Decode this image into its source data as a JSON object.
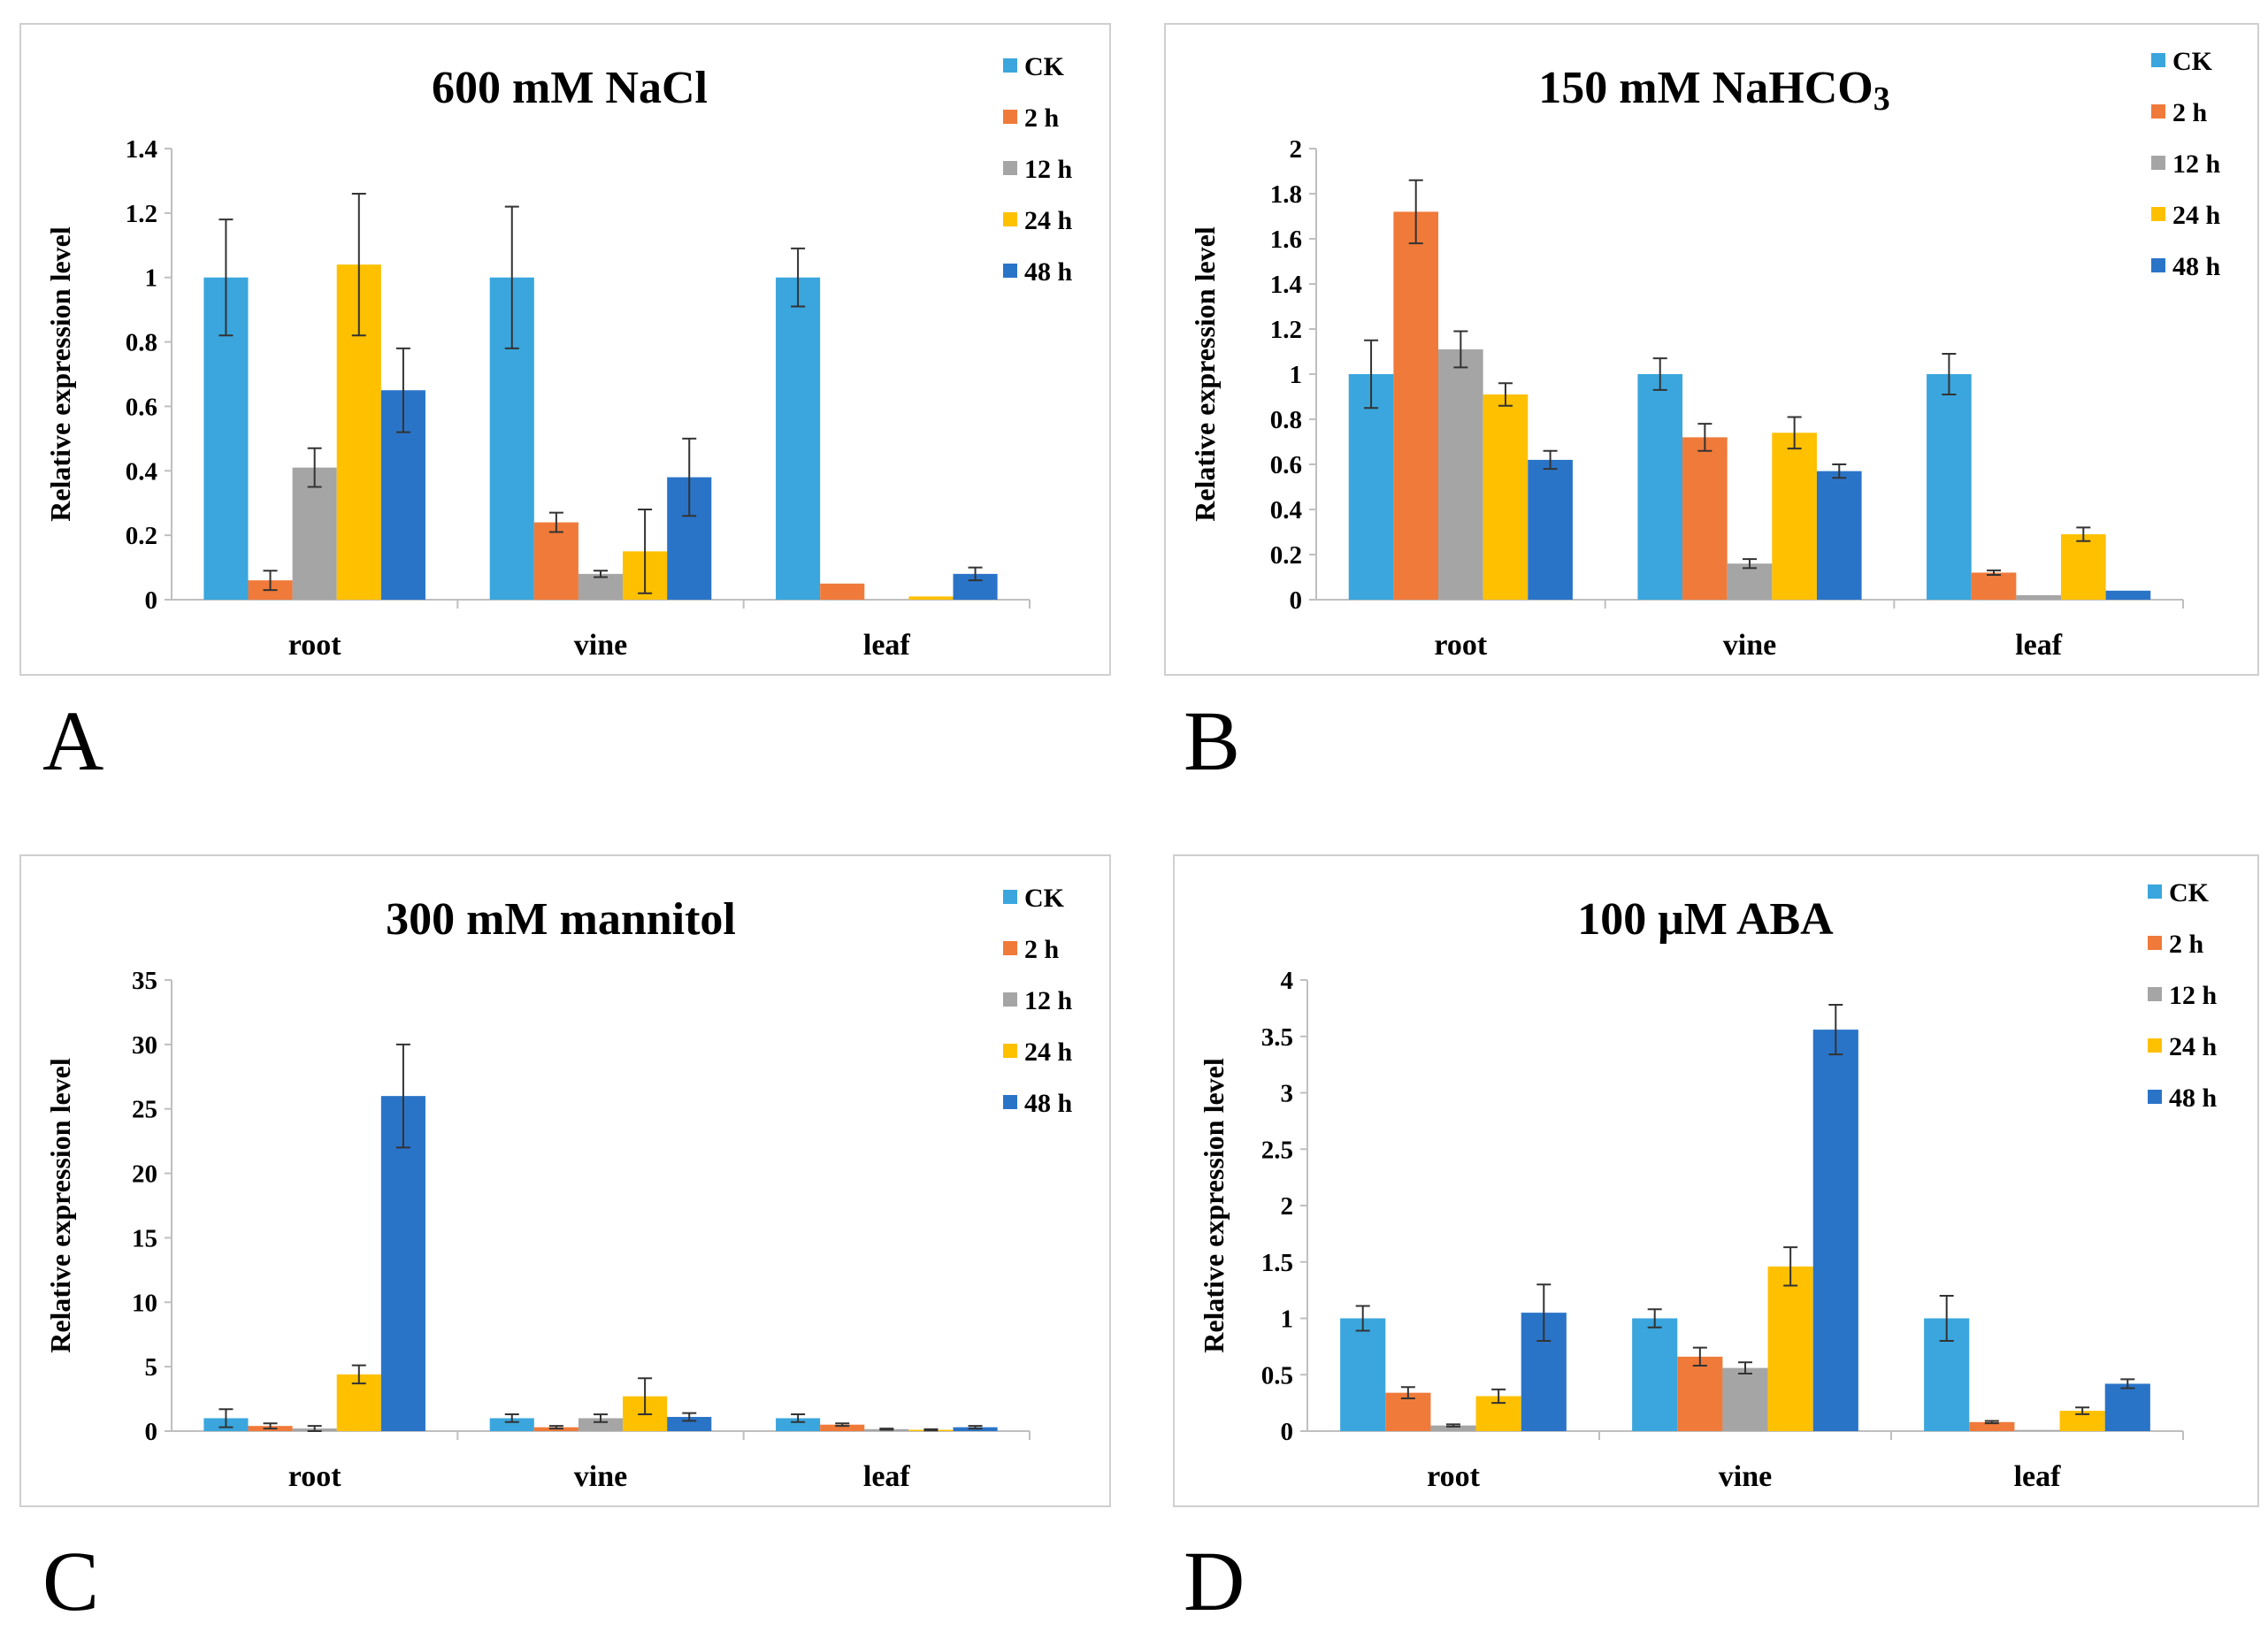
{
  "colors": {
    "CK": "#3aa6dd",
    "2 h": "#f07a3a",
    "12 h": "#a5a5a5",
    "24 h": "#ffc000",
    "48 h": "#2a74c8"
  },
  "chart_data": [
    {
      "panel": "A",
      "type": "bar",
      "title": "600 mM NaCl",
      "ylabel": "Relative expression level",
      "xlabel": "",
      "ylim": [
        0,
        1.4
      ],
      "yticks": [
        "0",
        "0.2",
        "0.4",
        "0.6",
        "0.8",
        "1",
        "1.2",
        "1.4"
      ],
      "categories": [
        "root",
        "vine",
        "leaf"
      ],
      "series": [
        {
          "name": "CK",
          "values": [
            1.0,
            1.0,
            1.0
          ],
          "errors": [
            0.18,
            0.22,
            0.09
          ]
        },
        {
          "name": "2 h",
          "values": [
            0.06,
            0.24,
            0.05
          ],
          "errors": [
            0.03,
            0.03,
            0.0
          ]
        },
        {
          "name": "12 h",
          "values": [
            0.41,
            0.08,
            0.0
          ],
          "errors": [
            0.06,
            0.01,
            0.0
          ]
        },
        {
          "name": "24 h",
          "values": [
            1.04,
            0.15,
            0.01
          ],
          "errors": [
            0.22,
            0.13,
            0.0
          ]
        },
        {
          "name": "48 h",
          "values": [
            0.65,
            0.38,
            0.08
          ],
          "errors": [
            0.13,
            0.12,
            0.02
          ]
        }
      ]
    },
    {
      "panel": "B",
      "type": "bar",
      "title": "150 mM NaHCO",
      "title_sub": "3",
      "ylabel": "Relative expression level",
      "xlabel": "",
      "ylim": [
        0,
        2
      ],
      "yticks": [
        "0",
        "0.2",
        "0.4",
        "0.6",
        "0.8",
        "1",
        "1.2",
        "1.4",
        "1.6",
        "1.8",
        "2"
      ],
      "categories": [
        "root",
        "vine",
        "leaf"
      ],
      "series": [
        {
          "name": "CK",
          "values": [
            1.0,
            1.0,
            1.0
          ],
          "errors": [
            0.15,
            0.07,
            0.09
          ]
        },
        {
          "name": "2 h",
          "values": [
            1.72,
            0.72,
            0.12
          ],
          "errors": [
            0.14,
            0.06,
            0.01
          ]
        },
        {
          "name": "12 h",
          "values": [
            1.11,
            0.16,
            0.02
          ],
          "errors": [
            0.08,
            0.02,
            0.0
          ]
        },
        {
          "name": "24 h",
          "values": [
            0.91,
            0.74,
            0.29
          ],
          "errors": [
            0.05,
            0.07,
            0.03
          ]
        },
        {
          "name": "48 h",
          "values": [
            0.62,
            0.57,
            0.04
          ],
          "errors": [
            0.04,
            0.03,
            0.0
          ]
        }
      ]
    },
    {
      "panel": "C",
      "type": "bar",
      "title": "300 mM mannitol",
      "ylabel": "Relative expression level",
      "xlabel": "",
      "ylim": [
        0,
        35
      ],
      "yticks": [
        "0",
        "5",
        "10",
        "15",
        "20",
        "25",
        "30",
        "35"
      ],
      "categories": [
        "root",
        "vine",
        "leaf"
      ],
      "series": [
        {
          "name": "CK",
          "values": [
            1.0,
            1.0,
            1.0
          ],
          "errors": [
            0.7,
            0.3,
            0.3
          ]
        },
        {
          "name": "2 h",
          "values": [
            0.4,
            0.3,
            0.5
          ],
          "errors": [
            0.2,
            0.1,
            0.1
          ]
        },
        {
          "name": "12 h",
          "values": [
            0.2,
            1.0,
            0.15
          ],
          "errors": [
            0.2,
            0.3,
            0.05
          ]
        },
        {
          "name": "24 h",
          "values": [
            4.4,
            2.7,
            0.1
          ],
          "errors": [
            0.7,
            1.4,
            0.05
          ]
        },
        {
          "name": "48 h",
          "values": [
            26.0,
            1.1,
            0.3
          ],
          "errors": [
            4.0,
            0.3,
            0.1
          ]
        }
      ]
    },
    {
      "panel": "D",
      "type": "bar",
      "title": "100 μM ABA",
      "ylabel": "Relative expression level",
      "xlabel": "",
      "ylim": [
        0,
        4
      ],
      "yticks": [
        "0",
        "0.5",
        "1",
        "1.5",
        "2",
        "2.5",
        "3",
        "3.5",
        "4"
      ],
      "categories": [
        "root",
        "vine",
        "leaf"
      ],
      "series": [
        {
          "name": "CK",
          "values": [
            1.0,
            1.0,
            1.0
          ],
          "errors": [
            0.11,
            0.08,
            0.2
          ]
        },
        {
          "name": "2 h",
          "values": [
            0.34,
            0.66,
            0.08
          ],
          "errors": [
            0.05,
            0.08,
            0.01
          ]
        },
        {
          "name": "12 h",
          "values": [
            0.05,
            0.56,
            0.01
          ],
          "errors": [
            0.01,
            0.05,
            0.0
          ]
        },
        {
          "name": "24 h",
          "values": [
            0.31,
            1.46,
            0.18
          ],
          "errors": [
            0.06,
            0.17,
            0.03
          ]
        },
        {
          "name": "48 h",
          "values": [
            1.05,
            3.56,
            0.42
          ],
          "errors": [
            0.25,
            0.22,
            0.04
          ]
        }
      ]
    }
  ]
}
